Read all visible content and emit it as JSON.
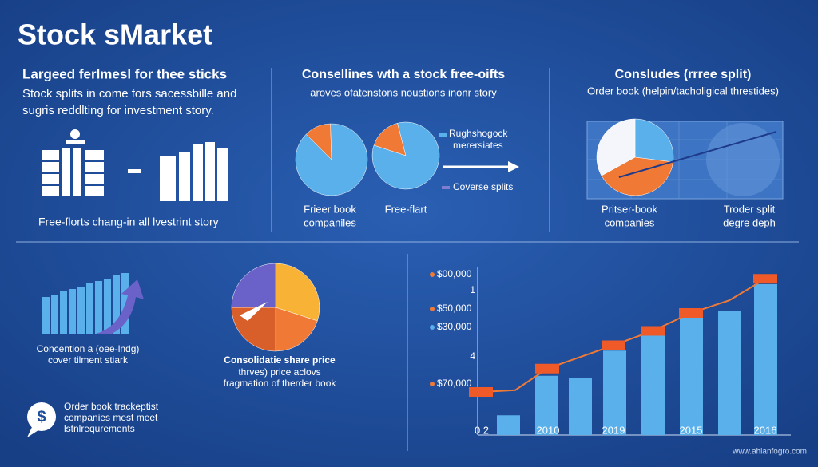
{
  "title": "Stock sMarket",
  "panel1": {
    "heading": "Largeed ferlmesl for thee sticks",
    "lines": [
      "Stock splits in come fors sacessbille and",
      "sugris reddlting for investment story."
    ],
    "caption": "Free-florts chang-in all lvestrint story"
  },
  "panel2": {
    "heading": "Consellines wth a stock free-oifts",
    "subtitle": "aroves ofatenstons noustions inonr story",
    "legend": [
      "Rughshogock",
      "merersiates",
      "Coverse splits"
    ],
    "label1": [
      "Frieer book",
      "companiles"
    ],
    "label2": "Free-flart",
    "pie1": [
      12,
      88
    ],
    "pie2": [
      16,
      84
    ]
  },
  "panel3": {
    "heading": "Consludes (rrree split)",
    "subtitle": "Order book (helpin/tacholigical threstides)",
    "label1": [
      "Pritser-book",
      "companies"
    ],
    "label2": [
      "Troder split",
      "degre deph"
    ],
    "pie": [
      27,
      40,
      33
    ]
  },
  "bottom_left": {
    "caption": [
      "Concention a (oee-lndg)",
      "cover tilment stiark"
    ],
    "note": [
      "Order book trackeptist",
      "companies mest meet",
      "lstnlrequrements"
    ]
  },
  "bottom_middle": {
    "caption": "Consolidatie share price",
    "lines": [
      "thrves) price aclovs",
      "fragmation of therder book"
    ],
    "pie": [
      30,
      20,
      25,
      25
    ]
  },
  "chart": {
    "ylabels": [
      "$00,000",
      "1",
      "$50,000",
      "$30,000",
      "4",
      "$70,000"
    ],
    "xlabels": [
      "0 2",
      "2010",
      "2019",
      "2015",
      "2016"
    ],
    "ylim": [
      0,
      100
    ],
    "bars": [
      11,
      33,
      32,
      47,
      56,
      66,
      69,
      84
    ],
    "line": [
      24,
      25,
      37,
      50,
      58,
      68,
      75,
      87
    ]
  },
  "watermark": "www.ahianfogro.com"
}
